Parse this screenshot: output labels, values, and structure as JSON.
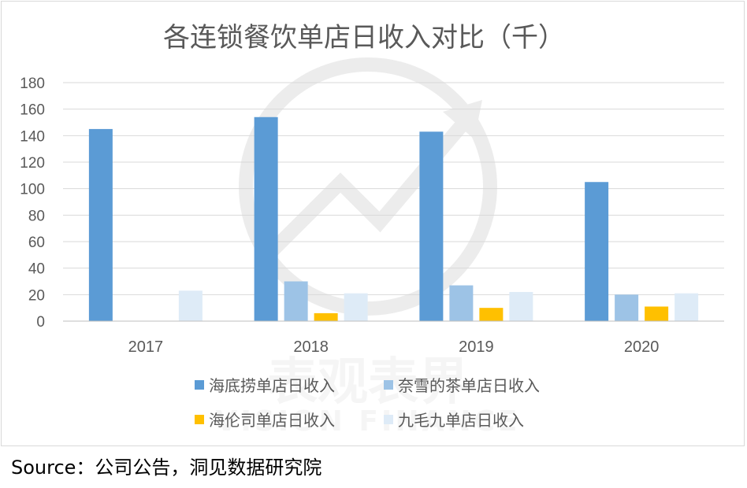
{
  "chart_data": {
    "type": "bar",
    "title": "各连锁餐饮单店日收入对比（千）",
    "categories": [
      "2017",
      "2018",
      "2019",
      "2020"
    ],
    "series": [
      {
        "name": "海底捞单店日收入",
        "color": "#5b9bd5",
        "values": [
          145,
          154,
          143,
          105
        ]
      },
      {
        "name": "奈雪的茶单店日收入",
        "color": "#9dc3e6",
        "values": [
          0,
          30,
          27,
          20
        ]
      },
      {
        "name": "海伦司单店日收入",
        "color": "#ffc000",
        "values": [
          0,
          6,
          10,
          11
        ]
      },
      {
        "name": "九毛九单店日收入",
        "color": "#deebf7",
        "values": [
          23,
          21,
          22,
          21
        ]
      }
    ],
    "ylim": [
      0,
      180
    ],
    "yticks": [
      "0",
      "20",
      "40",
      "60",
      "80",
      "100",
      "120",
      "140",
      "160",
      "180"
    ],
    "grid": true,
    "legend_position": "bottom"
  },
  "watermark": {
    "cn": "表观表界",
    "en": "VISION FINANCE"
  },
  "source": "Source：公司公告，洞见数据研究院"
}
